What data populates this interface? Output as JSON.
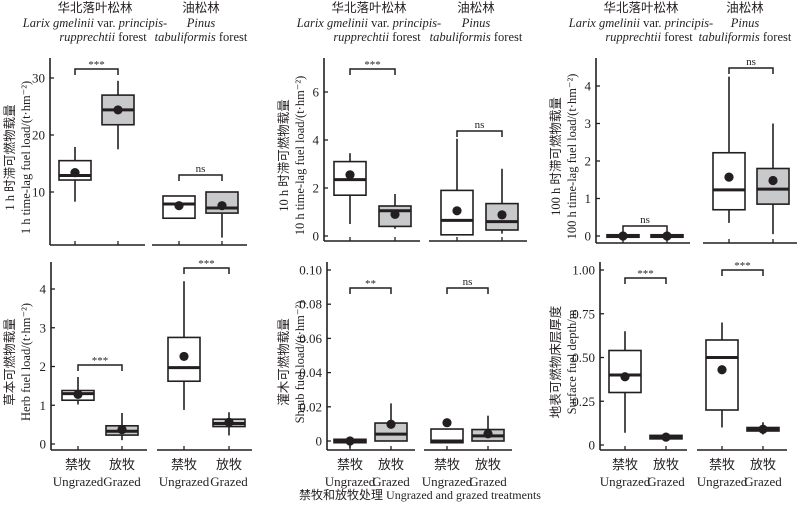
{
  "figure": {
    "xlabel": "禁牧和放牧处理 Ungrazed and grazed treatments",
    "groups": [
      {
        "zh": "华北落叶松林",
        "latin_line1": "Larix gmelinii",
        "var": " var. ",
        "latin_line1b": "principis-",
        "latin_line2": "rupprechtii",
        "suffix": " forest"
      },
      {
        "zh": "油松林",
        "latin_line1": "Pinus",
        "latin_line2": "tabuliformis",
        "suffix": " forest"
      }
    ],
    "treatments": [
      {
        "zh": "禁牧",
        "en": "Ungrazed"
      },
      {
        "zh": "放牧",
        "en": "Grazed"
      }
    ],
    "colors": {
      "ungrazed_fill": "#ffffff",
      "grazed_fill": "#c8c9cb",
      "stroke": "#231f20"
    }
  },
  "chart_data": [
    {
      "type": "box",
      "id": "p1",
      "ylabel_zh": "1 h 时滞可燃物载量",
      "ylabel_en": "1 h time-lag fuel load/(t·hm⁻²)",
      "ylim": [
        0.7,
        33.5
      ],
      "yticks": [
        10,
        20,
        30
      ],
      "ytick_labels": [
        "10",
        "20",
        "30"
      ],
      "groups": [
        {
          "name": "Larix gmelinii var. principis-rupprechtii forest",
          "boxes": [
            {
              "treatment": "Ungrazed",
              "whisker_low": 8.3,
              "q1": 12.1,
              "median": 12.9,
              "q3": 15.5,
              "whisker_high": 17.9,
              "mean": 13.4
            },
            {
              "treatment": "Grazed",
              "whisker_low": 17.5,
              "q1": 21.8,
              "median": 24.4,
              "q3": 27.0,
              "whisker_high": 29.5,
              "mean": 24.4
            }
          ],
          "significance": "***"
        },
        {
          "name": "Pinus tabuliformis forest",
          "boxes": [
            {
              "treatment": "Ungrazed",
              "whisker_low": 5.4,
              "q1": 5.4,
              "median": 7.9,
              "q3": 9.3,
              "whisker_high": 9.3,
              "mean": 7.6
            },
            {
              "treatment": "Grazed",
              "whisker_low": 2.0,
              "q1": 6.3,
              "median": 7.2,
              "q3": 10.0,
              "whisker_high": 10.0,
              "mean": 7.6
            }
          ],
          "significance": "ns"
        }
      ]
    },
    {
      "type": "box",
      "id": "p2",
      "ylabel_zh": "10 h 时滞可燃物载量",
      "ylabel_en": "10 h time-lag fuel load/(t·hm⁻²)",
      "ylim": [
        -0.1,
        7.6
      ],
      "yticks": [
        0,
        2,
        4,
        6
      ],
      "ytick_labels": [
        "0",
        "2",
        "4",
        "6"
      ],
      "groups": [
        {
          "name": "Larix gmelinii var. principis-rupprechtii forest",
          "boxes": [
            {
              "treatment": "Ungrazed",
              "whisker_low": 0.5,
              "q1": 1.7,
              "median": 2.35,
              "q3": 3.1,
              "whisker_high": 3.45,
              "mean": 2.55
            },
            {
              "treatment": "Grazed",
              "whisker_low": 0.3,
              "q1": 0.4,
              "median": 1.05,
              "q3": 1.25,
              "whisker_high": 1.75,
              "mean": 0.9
            }
          ],
          "significance": "***"
        },
        {
          "name": "Pinus tabuliformis forest",
          "boxes": [
            {
              "treatment": "Ungrazed",
              "whisker_low": 0.05,
              "q1": 0.05,
              "median": 0.65,
              "q3": 1.9,
              "whisker_high": 4.05,
              "mean": 1.05
            },
            {
              "treatment": "Grazed",
              "whisker_low": 0.1,
              "q1": 0.25,
              "median": 0.6,
              "q3": 1.35,
              "whisker_high": 2.8,
              "mean": 0.88
            }
          ],
          "significance": "ns"
        }
      ]
    },
    {
      "type": "box",
      "id": "p3",
      "ylabel_zh": "100 h 时滞可燃物载量",
      "ylabel_en": "100 h time-lag fuel load/(t·hm⁻²)",
      "ylim": [
        -0.2,
        4.7
      ],
      "yticks": [
        0,
        1,
        2,
        3,
        4
      ],
      "ytick_labels": [
        "0",
        "1",
        "2",
        "3",
        "4"
      ],
      "groups": [
        {
          "name": "Larix gmelinii var. principis-rupprechtii forest",
          "boxes": [
            {
              "treatment": "Ungrazed",
              "whisker_low": 0,
              "q1": 0,
              "median": 0,
              "q3": 0,
              "whisker_high": 0,
              "mean": 0
            },
            {
              "treatment": "Grazed",
              "whisker_low": 0,
              "q1": 0,
              "median": 0,
              "q3": 0,
              "whisker_high": 0,
              "mean": 0
            }
          ],
          "significance": "ns"
        },
        {
          "name": "Pinus tabuliformis forest",
          "boxes": [
            {
              "treatment": "Ungrazed",
              "whisker_low": 0.35,
              "q1": 0.7,
              "median": 1.23,
              "q3": 2.22,
              "whisker_high": 4.25,
              "mean": 1.57
            },
            {
              "treatment": "Grazed",
              "whisker_low": 0.05,
              "q1": 0.85,
              "median": 1.25,
              "q3": 1.8,
              "whisker_high": 3.0,
              "mean": 1.48
            }
          ],
          "significance": "ns"
        }
      ]
    },
    {
      "type": "box",
      "id": "p4",
      "ylabel_zh": "草本可燃物载量",
      "ylabel_en": "Herb fuel load/(t·hm⁻²)",
      "ylim": [
        -0.15,
        4.7
      ],
      "yticks": [
        0,
        1,
        2,
        3,
        4
      ],
      "ytick_labels": [
        "0",
        "1",
        "2",
        "3",
        "4"
      ],
      "groups": [
        {
          "name": "Larix gmelinii var. principis-rupprechtii forest",
          "boxes": [
            {
              "treatment": "Ungrazed",
              "whisker_low": 1.02,
              "q1": 1.13,
              "median": 1.3,
              "q3": 1.38,
              "whisker_high": 1.73,
              "mean": 1.28
            },
            {
              "treatment": "Grazed",
              "whisker_low": 0.1,
              "q1": 0.23,
              "median": 0.33,
              "q3": 0.47,
              "whisker_high": 0.8,
              "mean": 0.37
            }
          ],
          "significance": "***"
        },
        {
          "name": "Pinus tabuliformis forest",
          "boxes": [
            {
              "treatment": "Ungrazed",
              "whisker_low": 0.88,
              "q1": 1.62,
              "median": 1.97,
              "q3": 2.75,
              "whisker_high": 4.2,
              "mean": 2.26
            },
            {
              "treatment": "Grazed",
              "whisker_low": 0.22,
              "q1": 0.45,
              "median": 0.53,
              "q3": 0.64,
              "whisker_high": 0.82,
              "mean": 0.56
            }
          ],
          "significance": "***"
        }
      ]
    },
    {
      "type": "box",
      "id": "p5",
      "ylabel_zh": "灌木可燃物载量",
      "ylabel_en": "Shrub fuel load/(t·hm⁻²)",
      "ylim": [
        -0.005,
        0.104
      ],
      "yticks": [
        0,
        0.02,
        0.04,
        0.06,
        0.08,
        0.1
      ],
      "ytick_labels": [
        "0",
        "0.02",
        "0.04",
        "0.06",
        "0.08",
        "0.10"
      ],
      "groups": [
        {
          "name": "Larix gmelinii var. principis-rupprechtii forest",
          "boxes": [
            {
              "treatment": "Ungrazed",
              "whisker_low": -0.004,
              "q1": -0.001,
              "median": 0,
              "q3": 0.001,
              "whisker_high": 0.001,
              "mean": 0
            },
            {
              "treatment": "Grazed",
              "whisker_low": 0,
              "q1": 0,
              "median": 0.004,
              "q3": 0.0105,
              "whisker_high": 0.022,
              "mean": 0.0098
            }
          ],
          "significance": "**"
        },
        {
          "name": "Pinus tabuliformis forest",
          "boxes": [
            {
              "treatment": "Ungrazed",
              "whisker_low": -0.001,
              "q1": -0.001,
              "median": 0,
              "q3": 0.007,
              "whisker_high": 0.007,
              "mean": 0.0107
            },
            {
              "treatment": "Grazed",
              "whisker_low": 0,
              "q1": 0,
              "median": 0.003,
              "q3": 0.0067,
              "whisker_high": 0.0148,
              "mean": 0.0042
            }
          ],
          "significance": "ns"
        }
      ]
    },
    {
      "type": "box",
      "id": "p6",
      "ylabel_zh": "地表可燃物床层厚度",
      "ylabel_en": "Surface fuel depth/m",
      "ylim": [
        -0.025,
        1.04
      ],
      "yticks": [
        0,
        0.25,
        0.5,
        0.75,
        1.0
      ],
      "ytick_labels": [
        "0",
        "0.25",
        "0.50",
        "0.75",
        "1.00"
      ],
      "groups": [
        {
          "name": "Larix gmelinii var. principis-rupprechtii forest",
          "boxes": [
            {
              "treatment": "Ungrazed",
              "whisker_low": 0.07,
              "q1": 0.3,
              "median": 0.4,
              "q3": 0.54,
              "whisker_high": 0.65,
              "mean": 0.39
            },
            {
              "treatment": "Grazed",
              "whisker_low": 0.035,
              "q1": 0.035,
              "median": 0.045,
              "q3": 0.055,
              "whisker_high": 0.055,
              "mean": 0.045
            }
          ],
          "significance": "***"
        },
        {
          "name": "Pinus tabuliformis forest",
          "boxes": [
            {
              "treatment": "Ungrazed",
              "whisker_low": 0.1,
              "q1": 0.2,
              "median": 0.5,
              "q3": 0.6,
              "whisker_high": 0.7,
              "mean": 0.43
            },
            {
              "treatment": "Grazed",
              "whisker_low": 0.06,
              "q1": 0.08,
              "median": 0.09,
              "q3": 0.1,
              "whisker_high": 0.13,
              "mean": 0.09
            }
          ],
          "significance": "***"
        }
      ]
    }
  ]
}
